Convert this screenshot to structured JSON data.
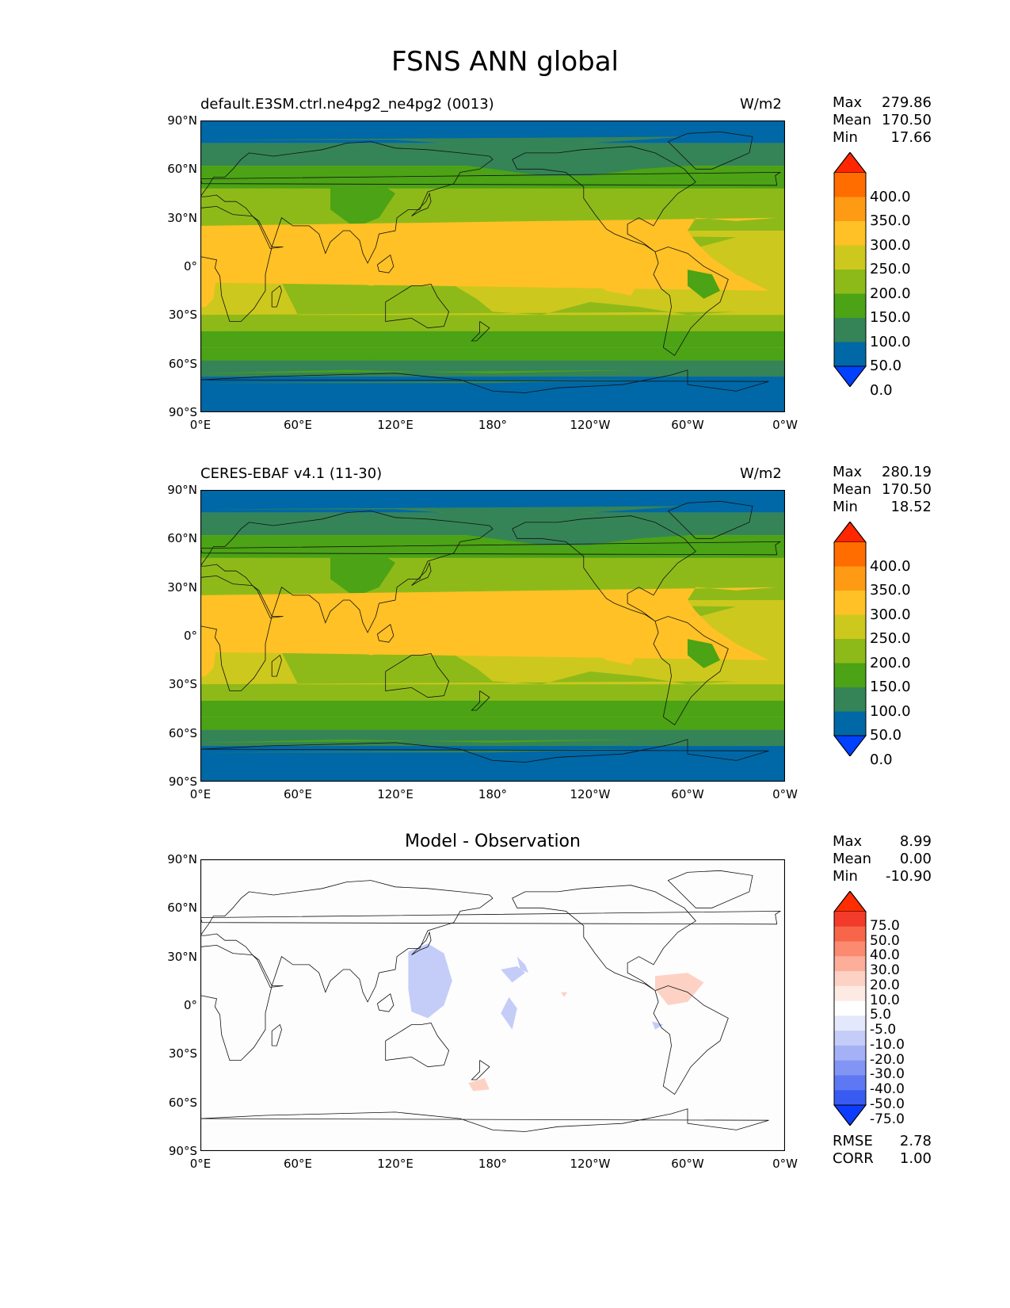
{
  "figure": {
    "title": "FSNS ANN global"
  },
  "axes": {
    "lat_ticks": [
      "90°N",
      "60°N",
      "30°N",
      "0°",
      "30°S",
      "60°S",
      "90°S"
    ],
    "lon_ticks": [
      "0°E",
      "60°E",
      "120°E",
      "180°",
      "120°W",
      "60°W",
      "0°W"
    ]
  },
  "panels": [
    {
      "id": "test",
      "title_left": "default.E3SM.ctrl.ne4pg2_ne4pg2 (0013)",
      "title_center": "",
      "units": "W/m2",
      "stats": [
        {
          "label": "Max",
          "value": "279.86"
        },
        {
          "label": "Mean",
          "value": "170.50"
        },
        {
          "label": "Min",
          "value": "17.66"
        }
      ],
      "colorbar": {
        "labels": [
          "400.0",
          "350.0",
          "300.0",
          "250.0",
          "200.0",
          "150.0",
          "100.0",
          "50.0",
          "0.0"
        ],
        "colors": [
          "#ff2600",
          "#ff6c00",
          "#ff9a14",
          "#ffc125",
          "#cdc81e",
          "#8eba19",
          "#4ba315",
          "#358457",
          "#0068a6",
          "#0040ff"
        ]
      }
    },
    {
      "id": "reference",
      "title_left": "CERES-EBAF v4.1 (11-30)",
      "title_center": "",
      "units": "W/m2",
      "stats": [
        {
          "label": "Max",
          "value": "280.19"
        },
        {
          "label": "Mean",
          "value": "170.50"
        },
        {
          "label": "Min",
          "value": "18.52"
        }
      ],
      "colorbar": {
        "labels": [
          "400.0",
          "350.0",
          "300.0",
          "250.0",
          "200.0",
          "150.0",
          "100.0",
          "50.0",
          "0.0"
        ],
        "colors": [
          "#ff2600",
          "#ff6c00",
          "#ff9a14",
          "#ffc125",
          "#cdc81e",
          "#8eba19",
          "#4ba315",
          "#358457",
          "#0068a6",
          "#0040ff"
        ]
      }
    },
    {
      "id": "difference",
      "title_left": "",
      "title_center": "Model - Observation",
      "units": "",
      "stats": [
        {
          "label": "Max",
          "value": "8.99"
        },
        {
          "label": "Mean",
          "value": "0.00"
        },
        {
          "label": "Min",
          "value": "-10.90"
        }
      ],
      "extra_stats": [
        {
          "label": "RMSE",
          "value": "2.78"
        },
        {
          "label": "CORR",
          "value": "1.00"
        }
      ],
      "colorbar": {
        "labels": [
          "75.0",
          "50.0",
          "40.0",
          "30.0",
          "20.0",
          "10.0",
          "5.0",
          "-5.0",
          "-10.0",
          "-20.0",
          "-30.0",
          "-40.0",
          "-50.0",
          "-75.0"
        ],
        "colors": [
          "#ff2d00",
          "#f23b2a",
          "#f76649",
          "#fb8a71",
          "#fdae9b",
          "#fdd2c5",
          "#fdeae3",
          "#ffffff",
          "#e3e8fb",
          "#c4cdf8",
          "#a4b1f6",
          "#8295f4",
          "#5d78f2",
          "#3a5bf1",
          "#0d3cff"
        ]
      }
    }
  ]
}
